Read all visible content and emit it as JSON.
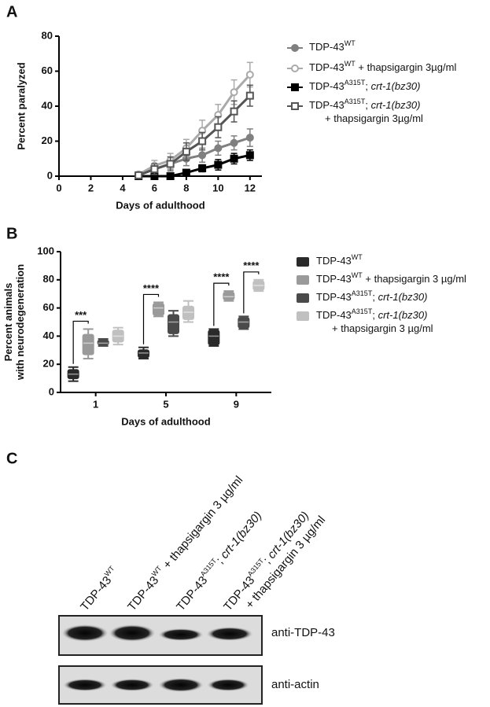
{
  "panel_labels": [
    "A",
    "B",
    "C"
  ],
  "chart_data": [
    {
      "type": "line",
      "xlabel": "Days of adulthood",
      "ylabel": [
        "Percent paralyzed"
      ],
      "x": [
        5,
        6,
        7,
        8,
        9,
        10,
        11,
        12
      ],
      "xlim": [
        0,
        12.75
      ],
      "xticks": [
        0,
        2,
        4,
        6,
        8,
        10,
        12
      ],
      "ylim": [
        0,
        80
      ],
      "yticks": [
        0,
        20,
        40,
        60,
        80
      ],
      "series": [
        {
          "name": [
            {
              "text": "TDP-43"
            },
            {
              "text": "WT",
              "sup": true
            }
          ],
          "color": "#808080",
          "marker": "circle",
          "filled": true,
          "values": [
            0.5,
            4,
            7,
            10,
            12,
            16,
            19,
            22
          ],
          "errors": [
            1,
            3,
            3,
            4,
            4,
            4,
            4,
            5
          ]
        },
        {
          "name": [
            {
              "text": "TDP-43"
            },
            {
              "text": "WT",
              "sup": true
            },
            {
              "text": " + thapsigargin 3µg/ml"
            }
          ],
          "color": "#aaaaaa",
          "marker": "circle",
          "filled": false,
          "values": [
            1,
            6,
            9,
            16,
            26,
            35,
            48,
            58
          ],
          "errors": [
            1,
            3,
            4,
            5,
            6,
            6,
            7,
            7
          ]
        },
        {
          "name": [
            {
              "text": "TDP-43"
            },
            {
              "text": "A315T",
              "sup": true
            },
            {
              "text": "; "
            },
            {
              "text": "crt-1(bz30)",
              "italic": true
            }
          ],
          "color": "#000000",
          "marker": "square",
          "filled": true,
          "values": [
            0,
            0,
            0,
            2,
            4.5,
            6.5,
            10,
            12
          ],
          "errors": [
            0,
            0,
            0,
            1.5,
            2,
            3,
            3,
            3
          ]
        },
        {
          "name": [
            {
              "text": "TDP-43"
            },
            {
              "text": "A315T",
              "sup": true
            },
            {
              "text": "; "
            },
            {
              "text": "crt-1(bz30)",
              "italic": true
            },
            {
              "text": "+ thapsigargin 3µg/ml",
              "newline": true
            }
          ],
          "color": "#555555",
          "marker": "square",
          "filled": false,
          "values": [
            0.5,
            4,
            7,
            14,
            20,
            28,
            37,
            46
          ],
          "errors": [
            1,
            3,
            4,
            5,
            5,
            6,
            6,
            6
          ]
        }
      ]
    },
    {
      "type": "box",
      "xlabel": "Days of adulthood",
      "ylabel": [
        "Percent animals",
        "with neurodegeneration"
      ],
      "categories": [
        "1",
        "5",
        "9"
      ],
      "ylim": [
        0,
        100
      ],
      "yticks": [
        0,
        20,
        40,
        60,
        80,
        100
      ],
      "series": [
        {
          "name": [
            {
              "text": "TDP-43"
            },
            {
              "text": "WT",
              "sup": true
            }
          ],
          "color": "#2a2a2a",
          "min": [
            8,
            24,
            33
          ],
          "q1": [
            10,
            25,
            34
          ],
          "median": [
            13,
            28,
            40
          ],
          "q3": [
            16,
            30,
            44
          ],
          "max": [
            18,
            32,
            45
          ]
        },
        {
          "name": [
            {
              "text": "TDP-43"
            },
            {
              "text": "WT",
              "sup": true
            },
            {
              "text": " + thapsigargin 3 µg/ml"
            }
          ],
          "color": "#9a9a9a",
          "min": [
            24,
            54,
            65
          ],
          "q1": [
            27,
            55,
            66
          ],
          "median": [
            35,
            60,
            68
          ],
          "q3": [
            41,
            63,
            71
          ],
          "max": [
            45,
            64,
            72
          ]
        },
        {
          "name": [
            {
              "text": "TDP-43"
            },
            {
              "text": "A315T",
              "sup": true
            },
            {
              "text": "; "
            },
            {
              "text": "crt-1(bz30)",
              "italic": true
            }
          ],
          "color": "#4a4a4a",
          "min": [
            33,
            40,
            45
          ],
          "q1": [
            34,
            42,
            46
          ],
          "median": [
            35,
            50,
            50
          ],
          "q3": [
            37,
            55,
            53
          ],
          "max": [
            38,
            58,
            54
          ]
        },
        {
          "name": [
            {
              "text": "TDP-43"
            },
            {
              "text": "A315T",
              "sup": true
            },
            {
              "text": "; "
            },
            {
              "text": "crt-1(bz30)",
              "italic": true
            },
            {
              "text": "+ thapsigargin 3 µg/ml",
              "newline": true
            }
          ],
          "color": "#c0c0c0",
          "min": [
            34,
            50,
            72
          ],
          "q1": [
            36,
            52,
            73
          ],
          "median": [
            40,
            57,
            76
          ],
          "q3": [
            44,
            61,
            79
          ],
          "max": [
            46,
            65,
            80
          ]
        }
      ],
      "annotations": [
        {
          "text": "***",
          "category": 0,
          "from": 0,
          "to": 1
        },
        {
          "text": "****",
          "category": 1,
          "from": 0,
          "to": 1
        },
        {
          "text": "****",
          "category": 2,
          "from": 0,
          "to": 1
        },
        {
          "text": "****",
          "category": 2,
          "from": 2,
          "to": 3
        }
      ]
    }
  ],
  "blot": {
    "lanes": [
      [
        {
          "text": "TDP-43"
        },
        {
          "text": "WT",
          "sup": true
        }
      ],
      [
        {
          "text": "TDP-43"
        },
        {
          "text": "WT",
          "sup": true
        },
        {
          "text": " + thapsigargin 3 µg/ml"
        }
      ],
      [
        {
          "text": "TDP-43"
        },
        {
          "text": "A315T",
          "sup": true
        },
        {
          "text": "; "
        },
        {
          "text": "crt-1(bz30)",
          "italic": true
        }
      ],
      [
        {
          "text": "TDP-43"
        },
        {
          "text": "A315T",
          "sup": true
        },
        {
          "text": "; "
        },
        {
          "text": "crt-1(bz30)",
          "italic": true
        },
        {
          "text": "+ thapsigargin 3 µg/ml",
          "newline": true
        }
      ]
    ],
    "rows": [
      "anti-TDP-43",
      "anti-actin"
    ]
  }
}
